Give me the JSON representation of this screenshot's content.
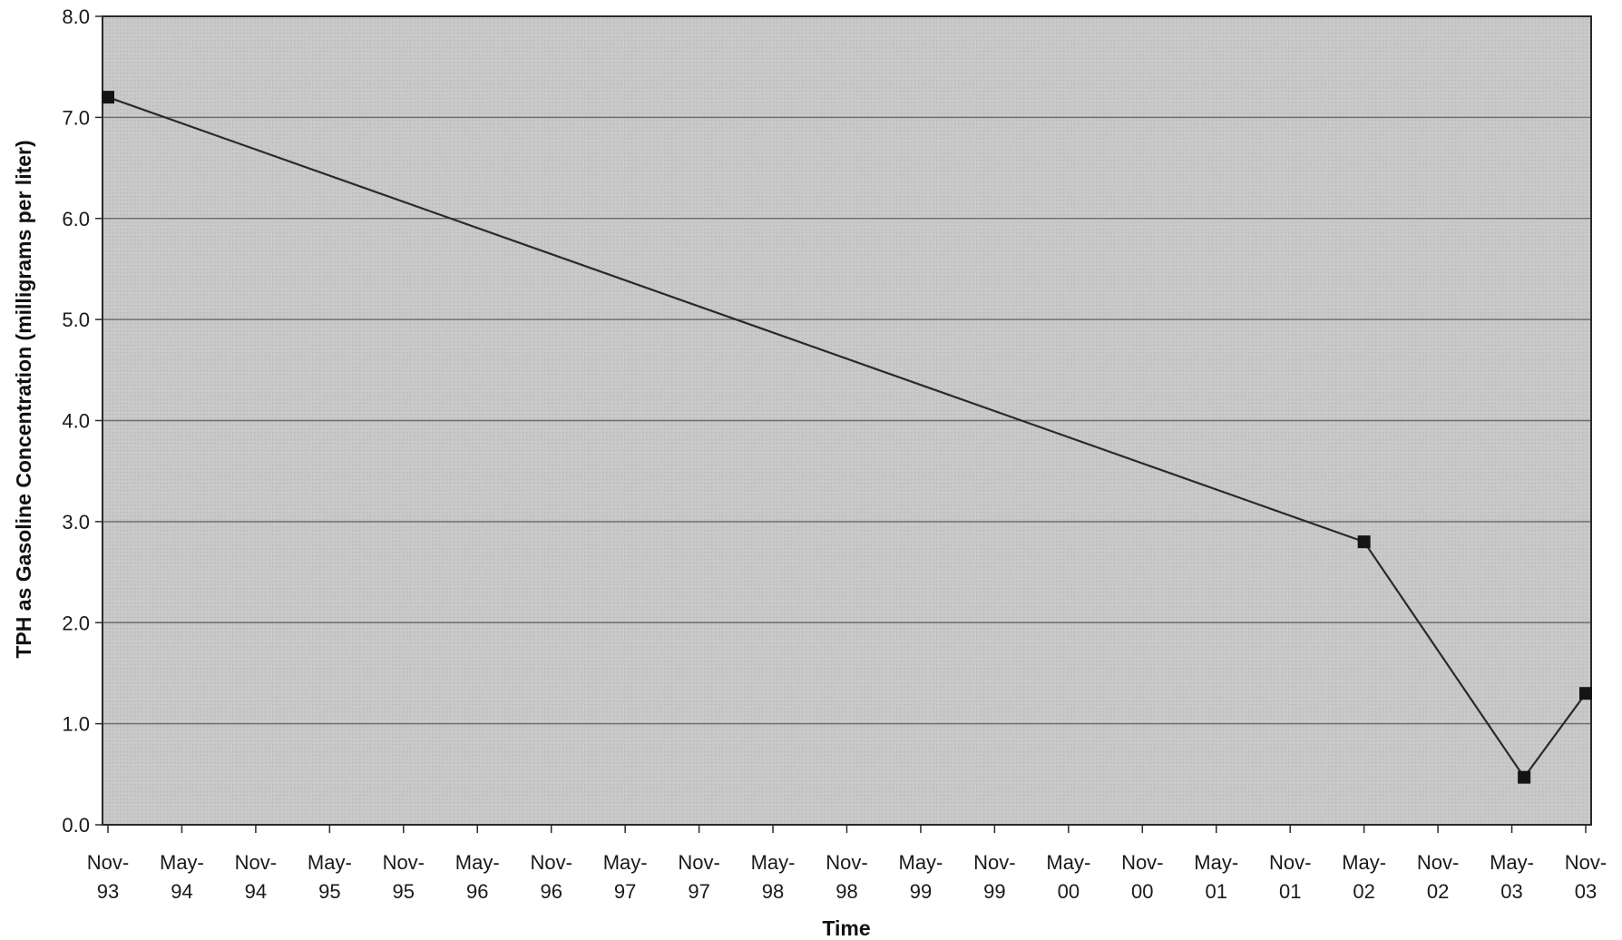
{
  "chart_data": {
    "type": "line",
    "title": "",
    "xlabel": "Time",
    "ylabel": "TPH as Gasoline Concentration (milligrams per liter)",
    "ylim": [
      0,
      8
    ],
    "yticks": [
      "0.0",
      "1.0",
      "2.0",
      "3.0",
      "4.0",
      "5.0",
      "6.0",
      "7.0",
      "8.0"
    ],
    "xlim": [
      "1993-11",
      "2003-11"
    ],
    "xticks": [
      {
        "top": "Nov-",
        "bottom": "93",
        "date": "1993-11"
      },
      {
        "top": "May-",
        "bottom": "94",
        "date": "1994-05"
      },
      {
        "top": "Nov-",
        "bottom": "94",
        "date": "1994-11"
      },
      {
        "top": "May-",
        "bottom": "95",
        "date": "1995-05"
      },
      {
        "top": "Nov-",
        "bottom": "95",
        "date": "1995-11"
      },
      {
        "top": "May-",
        "bottom": "96",
        "date": "1996-05"
      },
      {
        "top": "Nov-",
        "bottom": "96",
        "date": "1996-11"
      },
      {
        "top": "May-",
        "bottom": "97",
        "date": "1997-05"
      },
      {
        "top": "Nov-",
        "bottom": "97",
        "date": "1997-11"
      },
      {
        "top": "May-",
        "bottom": "98",
        "date": "1998-05"
      },
      {
        "top": "Nov-",
        "bottom": "98",
        "date": "1998-11"
      },
      {
        "top": "May-",
        "bottom": "99",
        "date": "1999-05"
      },
      {
        "top": "Nov-",
        "bottom": "99",
        "date": "1999-11"
      },
      {
        "top": "May-",
        "bottom": "00",
        "date": "2000-05"
      },
      {
        "top": "Nov-",
        "bottom": "00",
        "date": "2000-11"
      },
      {
        "top": "May-",
        "bottom": "01",
        "date": "2001-05"
      },
      {
        "top": "Nov-",
        "bottom": "01",
        "date": "2001-11"
      },
      {
        "top": "May-",
        "bottom": "02",
        "date": "2002-05"
      },
      {
        "top": "Nov-",
        "bottom": "02",
        "date": "2002-11"
      },
      {
        "top": "May-",
        "bottom": "03",
        "date": "2003-05"
      },
      {
        "top": "Nov-",
        "bottom": "03",
        "date": "2003-11"
      }
    ],
    "series": [
      {
        "points": [
          {
            "x": "1993-11",
            "y": 7.2
          },
          {
            "x": "2002-05",
            "y": 2.8
          },
          {
            "x": "2003-06",
            "y": 0.47
          },
          {
            "x": "2003-11",
            "y": 1.3
          }
        ]
      }
    ],
    "grid": "horizontal",
    "legend": "none",
    "colors": {
      "plot_background": "#c9c9c9",
      "plot_dots": "#a9a9a9",
      "gridline": "#6f6f6f",
      "line": "#2a2a2a",
      "marker": "#141414"
    }
  }
}
